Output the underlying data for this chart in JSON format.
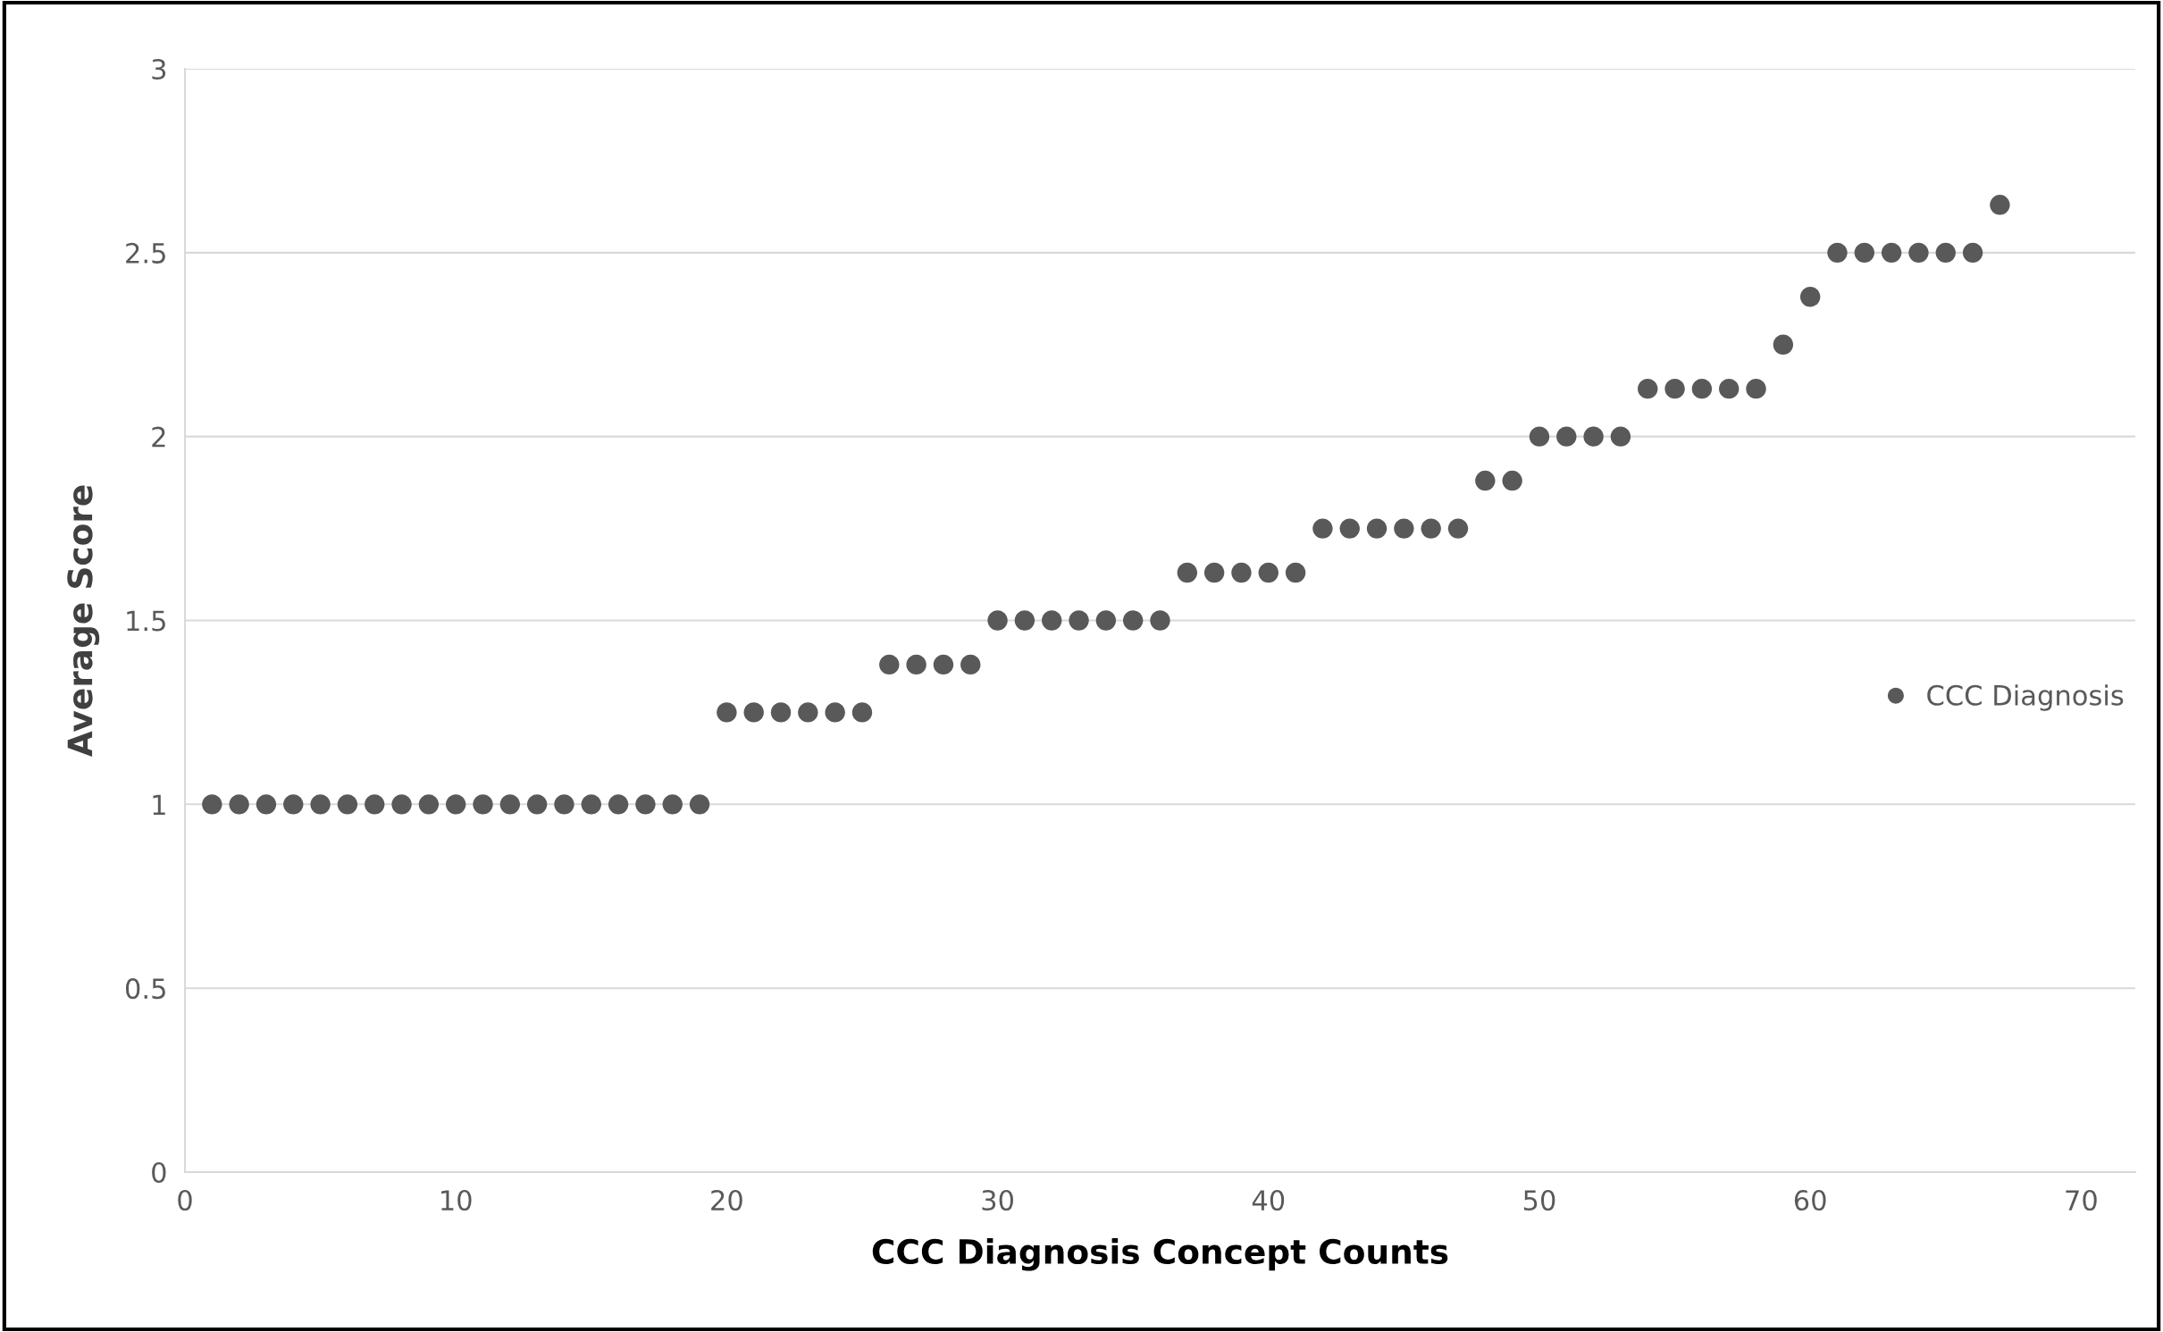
{
  "chart_data": {
    "type": "scatter",
    "xlabel": "CCC Diagnosis Concept Counts",
    "ylabel": "Average Score",
    "series": [
      {
        "name": "CCC Diagnosis",
        "color": "#595959",
        "x": [
          1,
          2,
          3,
          4,
          5,
          6,
          7,
          8,
          9,
          10,
          11,
          12,
          13,
          14,
          15,
          16,
          17,
          18,
          19,
          20,
          21,
          22,
          23,
          24,
          25,
          26,
          27,
          28,
          29,
          30,
          31,
          32,
          33,
          34,
          35,
          36,
          37,
          38,
          39,
          40,
          41,
          42,
          43,
          44,
          45,
          46,
          47,
          48,
          49,
          50,
          51,
          52,
          53,
          54,
          55,
          56,
          57,
          58,
          59,
          60,
          61,
          62,
          63,
          64,
          65,
          66,
          67
        ],
        "values": [
          1,
          1,
          1,
          1,
          1,
          1,
          1,
          1,
          1,
          1,
          1,
          1,
          1,
          1,
          1,
          1,
          1,
          1,
          1,
          1.25,
          1.25,
          1.25,
          1.25,
          1.25,
          1.25,
          1.38,
          1.38,
          1.38,
          1.38,
          1.5,
          1.5,
          1.5,
          1.5,
          1.5,
          1.5,
          1.5,
          1.63,
          1.63,
          1.63,
          1.63,
          1.63,
          1.75,
          1.75,
          1.75,
          1.75,
          1.75,
          1.75,
          1.88,
          1.88,
          2,
          2,
          2,
          2,
          2.13,
          2.13,
          2.13,
          2.13,
          2.13,
          2.25,
          2.38,
          2.5,
          2.5,
          2.5,
          2.5,
          2.5,
          2.5,
          2.63
        ]
      }
    ],
    "xlim": [
      0,
      72
    ],
    "xticks": [
      0,
      10,
      20,
      30,
      40,
      50,
      60,
      70
    ],
    "ylim": [
      0,
      3
    ],
    "yticks": [
      0,
      0.5,
      1,
      1.5,
      2,
      2.5,
      3
    ],
    "grid": "y",
    "legend": "right",
    "marker": "circle"
  }
}
